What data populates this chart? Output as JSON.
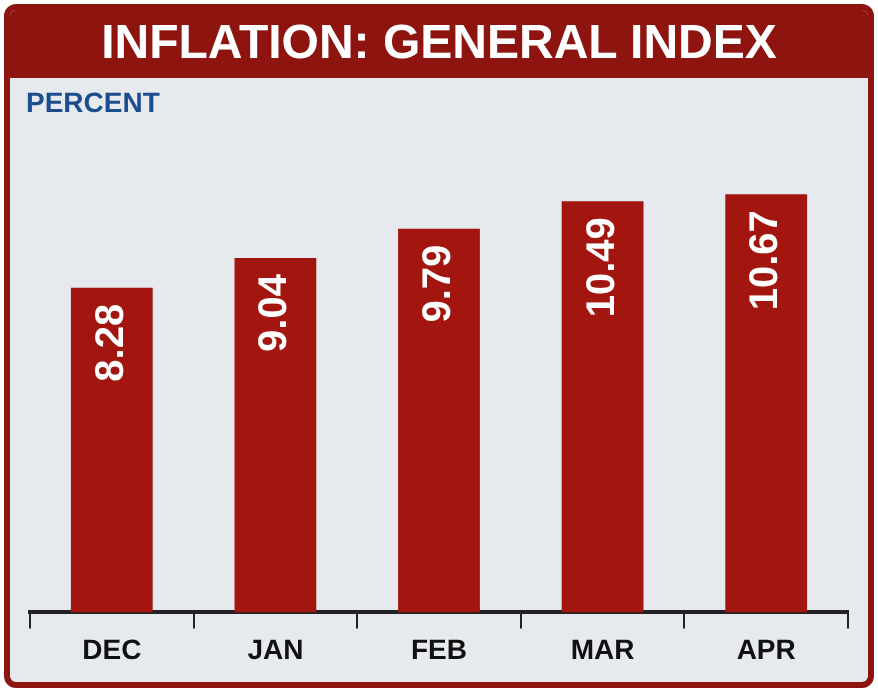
{
  "chart_data": {
    "type": "bar",
    "title": "INFLATION: GENERAL INDEX",
    "ylabel": "PERCENT",
    "categories": [
      "DEC",
      "JAN",
      "FEB",
      "MAR",
      "APR"
    ],
    "values": [
      8.28,
      9.04,
      9.79,
      10.49,
      10.67
    ],
    "color": "#a3160f",
    "data_labels": true
  }
}
